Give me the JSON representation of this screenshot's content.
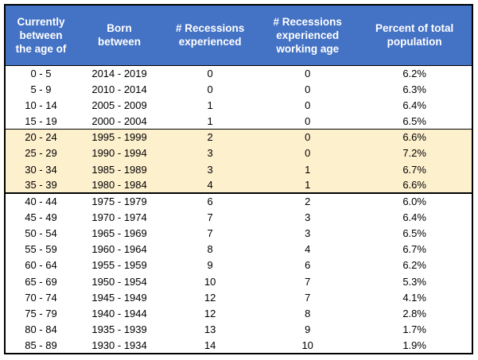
{
  "chart_data": {
    "type": "table",
    "title": "",
    "columns": [
      "Currently\nbetween\nthe age of",
      "Born\nbetween",
      "# Recessions\nexperienced",
      "# Recessions\nexperienced\nworking age",
      "Percent of total\npopulation"
    ],
    "column_widths_pct": [
      15.3,
      18.4,
      20.4,
      21.3,
      24.6
    ],
    "rows": [
      [
        "0 - 5",
        "2014 - 2019",
        "0",
        "0",
        "6.2%"
      ],
      [
        "5 - 9",
        "2010 - 2014",
        "0",
        "0",
        "6.3%"
      ],
      [
        "10 - 14",
        "2005 - 2009",
        "1",
        "0",
        "6.4%"
      ],
      [
        "15 - 19",
        "2000 - 2004",
        "1",
        "0",
        "6.5%"
      ],
      [
        "20 - 24",
        "1995 - 1999",
        "2",
        "0",
        "6.6%"
      ],
      [
        "25 - 29",
        "1990 - 1994",
        "3",
        "0",
        "7.2%"
      ],
      [
        "30 - 34",
        "1985 - 1989",
        "3",
        "1",
        "6.7%"
      ],
      [
        "35 - 39",
        "1980 - 1984",
        "4",
        "1",
        "6.6%"
      ],
      [
        "40 - 44",
        "1975 - 1979",
        "6",
        "2",
        "6.0%"
      ],
      [
        "45 - 49",
        "1970 - 1974",
        "7",
        "3",
        "6.4%"
      ],
      [
        "50 - 54",
        "1965 - 1969",
        "7",
        "3",
        "6.5%"
      ],
      [
        "55 - 59",
        "1960 - 1964",
        "8",
        "4",
        "6.7%"
      ],
      [
        "60 - 64",
        "1955 - 1959",
        "9",
        "6",
        "6.2%"
      ],
      [
        "65 - 69",
        "1950 - 1954",
        "10",
        "7",
        "5.3%"
      ],
      [
        "70 - 74",
        "1945 - 1949",
        "12",
        "7",
        "4.1%"
      ],
      [
        "75 - 79",
        "1940 - 1944",
        "12",
        "8",
        "2.8%"
      ],
      [
        "80 - 84",
        "1935 - 1939",
        "13",
        "9",
        "1.7%"
      ],
      [
        "85 - 89",
        "1930 - 1934",
        "14",
        "10",
        "1.9%"
      ]
    ],
    "highlighted_row_indices": [
      4,
      5,
      6,
      7
    ]
  },
  "colors": {
    "header_bg": "#4472C4",
    "header_text": "#FFFFFF",
    "highlight_bg": "#FDF0CD",
    "border_color": "#000000",
    "body_text": "#000000"
  }
}
